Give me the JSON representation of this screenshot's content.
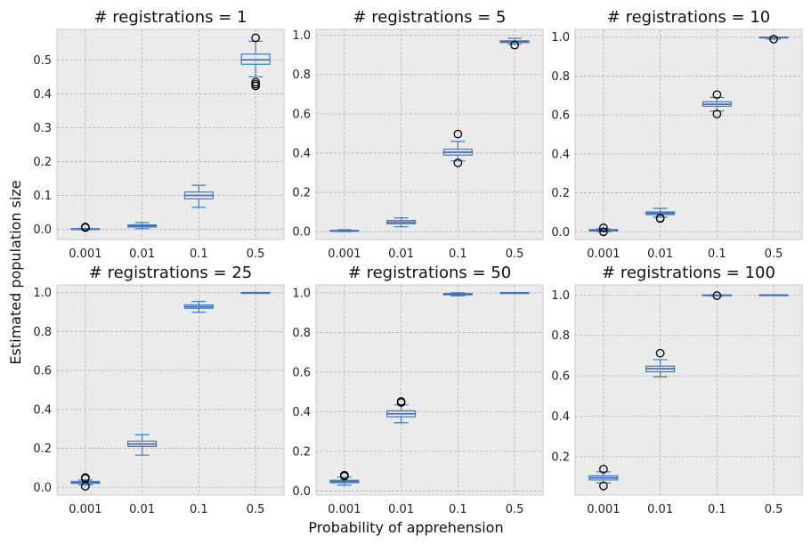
{
  "figure": {
    "ylabel": "Estimated population size",
    "xlabel": "Probability of apprehension"
  },
  "colors": {
    "panel_bg": "#ebebeb",
    "grid": "#b0b0b0",
    "box": "#3a7bbf",
    "median": "#4a6fb5",
    "outlier": "#000000"
  },
  "chart_data": [
    {
      "type": "box",
      "title": "# registrations = 1",
      "categories": [
        "0.001",
        "0.01",
        "0.1",
        "0.5"
      ],
      "ylim": [
        -0.03,
        0.59
      ],
      "yticks": [
        0.0,
        0.1,
        0.2,
        0.3,
        0.4,
        0.5
      ],
      "ytick_labels": [
        "0.0",
        "0.1",
        "0.2",
        "0.3",
        "0.4",
        "0.5"
      ],
      "boxes": [
        {
          "whislo": 0.0,
          "q1": 0.0,
          "med": 0.0,
          "q3": 0.002,
          "whishi": 0.003,
          "fliers": [
            0.005,
            0.007
          ]
        },
        {
          "whislo": 0.002,
          "q1": 0.007,
          "med": 0.01,
          "q3": 0.013,
          "whishi": 0.02,
          "fliers": []
        },
        {
          "whislo": 0.065,
          "q1": 0.09,
          "med": 0.1,
          "q3": 0.11,
          "whishi": 0.13,
          "fliers": []
        },
        {
          "whislo": 0.45,
          "q1": 0.487,
          "med": 0.5,
          "q3": 0.517,
          "whishi": 0.555,
          "fliers": [
            0.565,
            0.434,
            0.428,
            0.423
          ]
        }
      ]
    },
    {
      "type": "box",
      "title": "# registrations = 5",
      "categories": [
        "0.001",
        "0.01",
        "0.1",
        "0.5"
      ],
      "ylim": [
        -0.04,
        1.03
      ],
      "yticks": [
        0.0,
        0.2,
        0.4,
        0.6,
        0.8,
        1.0
      ],
      "ytick_labels": [
        "0.0",
        "0.2",
        "0.4",
        "0.6",
        "0.8",
        "1.0"
      ],
      "boxes": [
        {
          "whislo": 0.0,
          "q1": 0.002,
          "med": 0.004,
          "q3": 0.006,
          "whishi": 0.01,
          "fliers": []
        },
        {
          "whislo": 0.025,
          "q1": 0.04,
          "med": 0.048,
          "q3": 0.057,
          "whishi": 0.07,
          "fliers": []
        },
        {
          "whislo": 0.36,
          "q1": 0.39,
          "med": 0.405,
          "q3": 0.42,
          "whishi": 0.46,
          "fliers": [
            0.497,
            0.35
          ]
        },
        {
          "whislo": 0.955,
          "q1": 0.963,
          "med": 0.967,
          "q3": 0.972,
          "whishi": 0.985,
          "fliers": [
            0.95
          ]
        }
      ]
    },
    {
      "type": "box",
      "title": "# registrations = 10",
      "categories": [
        "0.001",
        "0.01",
        "0.1",
        "0.5"
      ],
      "ylim": [
        -0.04,
        1.04
      ],
      "yticks": [
        0.0,
        0.2,
        0.4,
        0.6,
        0.8,
        1.0
      ],
      "ytick_labels": [
        "0.0",
        "0.2",
        "0.4",
        "0.6",
        "0.8",
        "1.0"
      ],
      "boxes": [
        {
          "whislo": 0.0,
          "q1": 0.004,
          "med": 0.007,
          "q3": 0.011,
          "whishi": 0.015,
          "fliers": [
            0.02,
            0.0
          ]
        },
        {
          "whislo": 0.075,
          "q1": 0.088,
          "med": 0.095,
          "q3": 0.102,
          "whishi": 0.12,
          "fliers": [
            0.07,
            0.068
          ]
        },
        {
          "whislo": 0.62,
          "q1": 0.645,
          "med": 0.655,
          "q3": 0.668,
          "whishi": 0.69,
          "fliers": [
            0.705,
            0.605
          ]
        },
        {
          "whislo": 0.99,
          "q1": 0.996,
          "med": 0.998,
          "q3": 1.0,
          "whishi": 1.0,
          "fliers": [
            0.99
          ]
        }
      ]
    },
    {
      "type": "box",
      "title": "# registrations = 25",
      "categories": [
        "0.001",
        "0.01",
        "0.1",
        "0.5"
      ],
      "ylim": [
        -0.04,
        1.04
      ],
      "yticks": [
        0.0,
        0.2,
        0.4,
        0.6,
        0.8,
        1.0
      ],
      "ytick_labels": [
        "0.0",
        "0.2",
        "0.4",
        "0.6",
        "0.8",
        "1.0"
      ],
      "boxes": [
        {
          "whislo": 0.012,
          "q1": 0.02,
          "med": 0.025,
          "q3": 0.03,
          "whishi": 0.038,
          "fliers": [
            0.05,
            0.045,
            0.005
          ]
        },
        {
          "whislo": 0.165,
          "q1": 0.21,
          "med": 0.222,
          "q3": 0.237,
          "whishi": 0.27,
          "fliers": []
        },
        {
          "whislo": 0.9,
          "q1": 0.92,
          "med": 0.928,
          "q3": 0.937,
          "whishi": 0.955,
          "fliers": []
        },
        {
          "whislo": 1.0,
          "q1": 1.0,
          "med": 1.0,
          "q3": 1.0,
          "whishi": 1.0,
          "fliers": []
        }
      ]
    },
    {
      "type": "box",
      "title": "# registrations = 50",
      "categories": [
        "0.001",
        "0.01",
        "0.1",
        "0.5"
      ],
      "ylim": [
        -0.02,
        1.04
      ],
      "yticks": [
        0.0,
        0.2,
        0.4,
        0.6,
        0.8,
        1.0
      ],
      "ytick_labels": [
        "0.0",
        "0.2",
        "0.4",
        "0.6",
        "0.8",
        "1.0"
      ],
      "boxes": [
        {
          "whislo": 0.03,
          "q1": 0.042,
          "med": 0.048,
          "q3": 0.055,
          "whishi": 0.07,
          "fliers": [
            0.08,
            0.075
          ]
        },
        {
          "whislo": 0.345,
          "q1": 0.375,
          "med": 0.39,
          "q3": 0.405,
          "whishi": 0.435,
          "fliers": [
            0.452,
            0.447
          ]
        },
        {
          "whislo": 0.985,
          "q1": 0.99,
          "med": 0.993,
          "q3": 0.997,
          "whishi": 1.0,
          "fliers": []
        },
        {
          "whislo": 1.0,
          "q1": 1.0,
          "med": 1.0,
          "q3": 1.0,
          "whishi": 1.0,
          "fliers": []
        }
      ]
    },
    {
      "type": "box",
      "title": "# registrations = 100",
      "categories": [
        "0.001",
        "0.01",
        "0.1",
        "0.5"
      ],
      "ylim": [
        0.01,
        1.05
      ],
      "yticks": [
        0.2,
        0.4,
        0.6,
        0.8,
        1.0
      ],
      "ytick_labels": [
        "0.2",
        "0.4",
        "0.6",
        "0.8",
        "1.0"
      ],
      "boxes": [
        {
          "whislo": 0.07,
          "q1": 0.085,
          "med": 0.095,
          "q3": 0.105,
          "whishi": 0.125,
          "fliers": [
            0.138,
            0.055
          ]
        },
        {
          "whislo": 0.595,
          "q1": 0.62,
          "med": 0.635,
          "q3": 0.648,
          "whishi": 0.68,
          "fliers": [
            0.712
          ]
        },
        {
          "whislo": 0.995,
          "q1": 0.998,
          "med": 0.999,
          "q3": 1.0,
          "whishi": 1.0,
          "fliers": [
            0.997
          ]
        },
        {
          "whislo": 1.0,
          "q1": 1.0,
          "med": 1.0,
          "q3": 1.0,
          "whishi": 1.0,
          "fliers": []
        }
      ]
    }
  ]
}
